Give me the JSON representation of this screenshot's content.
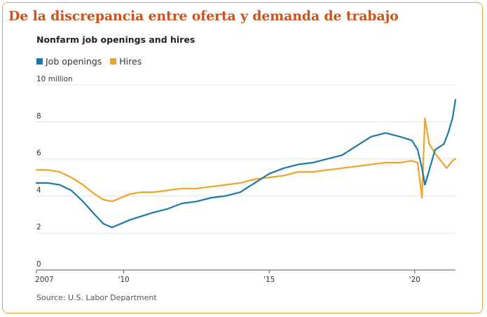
{
  "headline": "De la discrepancia entre oferta y demanda de trabajo",
  "source": "Source: U.S. Labor Department",
  "colors": {
    "openings": "#1a7aa8",
    "hires": "#f0a32a",
    "headline": "#c8541e",
    "frame": "#e8a34a"
  },
  "chart_data": {
    "type": "line",
    "title": "Nonfarm job openings and hires",
    "ylabel_unit": "million",
    "ylim": [
      0,
      10
    ],
    "yticks": [
      0,
      2,
      4,
      6,
      8,
      10
    ],
    "ytick_labels": [
      "0",
      "2",
      "4",
      "6",
      "8",
      "10 million"
    ],
    "xlim": [
      2007,
      2021.4
    ],
    "xticks": [
      2007,
      2010,
      2015,
      2020
    ],
    "xtick_labels": [
      "2007",
      "'10",
      "'15",
      "'20"
    ],
    "grid": true,
    "legend": "top-left",
    "series": [
      {
        "name": "Job openings",
        "x": [
          2007.0,
          2007.4,
          2007.8,
          2008.2,
          2008.6,
          2009.0,
          2009.3,
          2009.6,
          2009.9,
          2010.2,
          2010.6,
          2011.0,
          2011.5,
          2012.0,
          2012.5,
          2013.0,
          2013.5,
          2014.0,
          2014.5,
          2015.0,
          2015.5,
          2016.0,
          2016.5,
          2017.0,
          2017.5,
          2018.0,
          2018.5,
          2019.0,
          2019.5,
          2019.9,
          2020.1,
          2020.25,
          2020.35,
          2020.5,
          2020.7,
          2021.0,
          2021.15,
          2021.3,
          2021.4
        ],
        "values": [
          4.7,
          4.7,
          4.6,
          4.3,
          3.7,
          3.0,
          2.5,
          2.3,
          2.5,
          2.7,
          2.9,
          3.1,
          3.3,
          3.6,
          3.7,
          3.9,
          4.0,
          4.2,
          4.7,
          5.2,
          5.5,
          5.7,
          5.8,
          6.0,
          6.2,
          6.7,
          7.2,
          7.4,
          7.2,
          7.0,
          6.5,
          5.5,
          4.6,
          5.4,
          6.5,
          6.8,
          7.4,
          8.2,
          9.2
        ]
      },
      {
        "name": "Hires",
        "x": [
          2007.0,
          2007.4,
          2007.8,
          2008.2,
          2008.6,
          2009.0,
          2009.3,
          2009.6,
          2009.9,
          2010.2,
          2010.6,
          2011.0,
          2011.5,
          2012.0,
          2012.5,
          2013.0,
          2013.5,
          2014.0,
          2014.5,
          2015.0,
          2015.5,
          2016.0,
          2016.5,
          2017.0,
          2017.5,
          2018.0,
          2018.5,
          2019.0,
          2019.5,
          2019.9,
          2020.1,
          2020.25,
          2020.35,
          2020.5,
          2020.7,
          2020.9,
          2021.1,
          2021.3,
          2021.4
        ],
        "values": [
          5.4,
          5.4,
          5.3,
          5.0,
          4.6,
          4.1,
          3.8,
          3.7,
          3.9,
          4.1,
          4.2,
          4.2,
          4.3,
          4.4,
          4.4,
          4.5,
          4.6,
          4.7,
          4.9,
          5.0,
          5.1,
          5.3,
          5.3,
          5.4,
          5.5,
          5.6,
          5.7,
          5.8,
          5.8,
          5.9,
          5.8,
          3.9,
          8.2,
          6.8,
          6.3,
          5.9,
          5.5,
          5.9,
          6.0
        ]
      }
    ]
  }
}
